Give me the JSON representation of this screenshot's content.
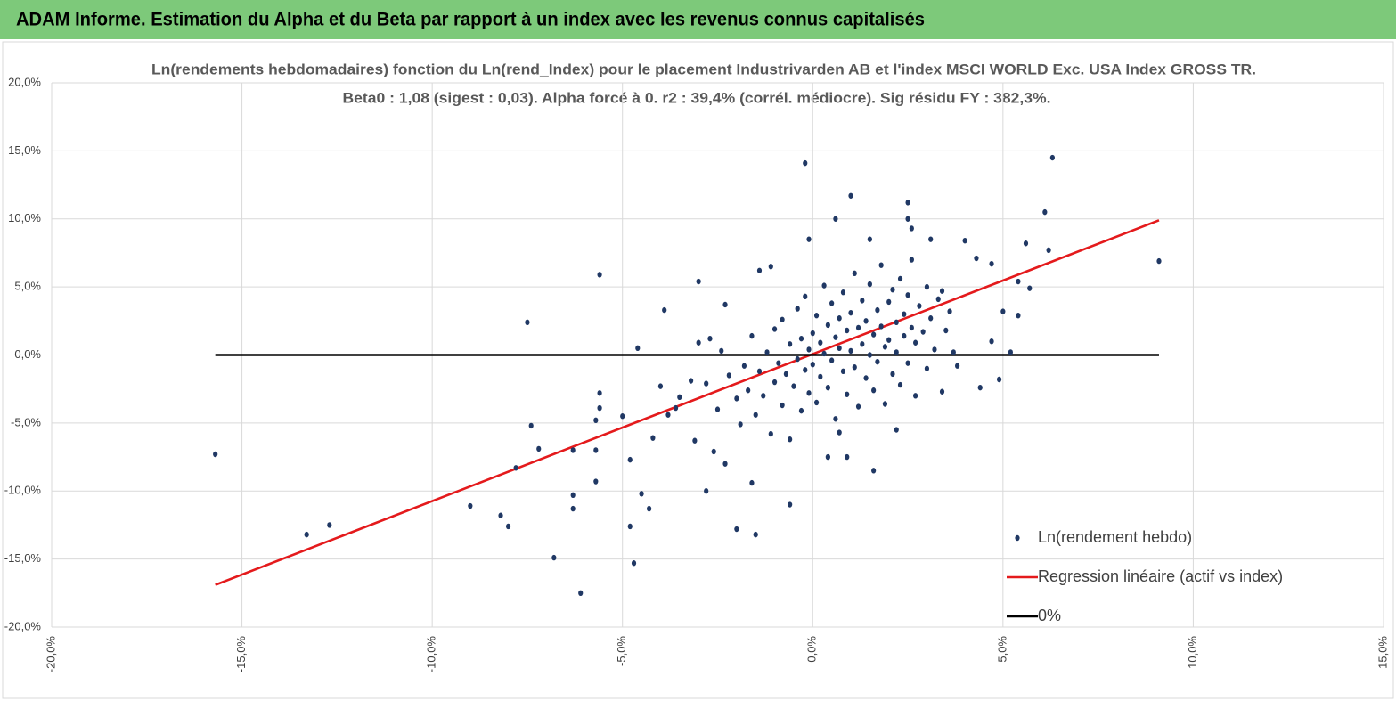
{
  "header": {
    "title": "ADAM Informe. Estimation du Alpha et du Beta par rapport à un index avec les revenus connus capitalisés"
  },
  "chart_data": {
    "type": "scatter",
    "title": "Ln(rendements hebdomadaires) fonction du Ln(rend_Index) pour le placement Industrivarden AB et l'index MSCI WORLD Exc. USA Index GROSS TR.",
    "subtitle": "Beta0 : 1,08  (sigest : 0,03). Alpha forcé à 0. r2 : 39,4% (corrél. médiocre). Sig résidu FY : 382,3%.",
    "xlim": [
      -20,
      15
    ],
    "ylim": [
      -20,
      20
    ],
    "xticks": [
      {
        "value": -20,
        "label": "-20,0%"
      },
      {
        "value": -15,
        "label": "-15,0%"
      },
      {
        "value": -10,
        "label": "-10,0%"
      },
      {
        "value": -5,
        "label": "-5,0%"
      },
      {
        "value": 0,
        "label": "0,0%"
      },
      {
        "value": 5,
        "label": "5,0%"
      },
      {
        "value": 10,
        "label": "10,0%"
      },
      {
        "value": 15,
        "label": "15,0%"
      }
    ],
    "yticks": [
      {
        "value": -20,
        "label": "-20,0%"
      },
      {
        "value": -15,
        "label": "-15,0%"
      },
      {
        "value": -10,
        "label": "-10,0%"
      },
      {
        "value": -5,
        "label": "-5,0%"
      },
      {
        "value": 0,
        "label": "0,0%"
      },
      {
        "value": 5,
        "label": "5,0%"
      },
      {
        "value": 10,
        "label": "10,0%"
      },
      {
        "value": 15,
        "label": "15,0%"
      },
      {
        "value": 20,
        "label": "20,0%"
      }
    ],
    "grid": true,
    "legend": "lower right",
    "series": [
      {
        "name": "Ln(rendement hebdo)",
        "kind": "scatter",
        "color": "#203864",
        "x": [
          -15.7,
          -13.3,
          -12.7,
          -9.0,
          -8.2,
          -8.0,
          -7.8,
          -7.5,
          -7.4,
          -7.2,
          -6.8,
          -6.3,
          -6.3,
          -6.3,
          -6.1,
          -5.7,
          -5.7,
          -5.7,
          -5.6,
          -5.6,
          -5.6,
          -5.0,
          -4.8,
          -4.7,
          -4.6,
          -4.8,
          -4.5,
          -4.3,
          -3.9,
          -3.6,
          -3.0,
          -2.8,
          -2.7,
          -2.3,
          -2.0,
          -1.5,
          -1.6,
          -1.4,
          -1.1,
          -0.6,
          -0.2,
          -0.1,
          0.6,
          1.0,
          1.5,
          1.6,
          2.2,
          2.5,
          2.5,
          2.6,
          3.1,
          4.0,
          4.4,
          4.7,
          4.9,
          5.2,
          5.0,
          5.4,
          5.4,
          5.6,
          5.7,
          6.1,
          6.2,
          6.3,
          9.1,
          4.7,
          4.3,
          3.4,
          3.7,
          0.9,
          0.4,
          0.7,
          -2.8,
          -2.5,
          -2.4,
          -2.2,
          -2.0,
          -1.9,
          -1.8,
          -1.7,
          -1.6,
          -1.5,
          -1.4,
          -1.3,
          -1.2,
          -1.1,
          -1.0,
          -1.0,
          -0.9,
          -0.8,
          -0.8,
          -0.7,
          -0.6,
          -0.6,
          -0.5,
          -0.4,
          -0.4,
          -0.3,
          -0.3,
          -0.2,
          -0.2,
          -0.1,
          -0.1,
          0.0,
          0.0,
          0.1,
          0.1,
          0.2,
          0.2,
          0.3,
          0.3,
          0.4,
          0.4,
          0.5,
          0.5,
          0.6,
          0.6,
          0.7,
          0.7,
          0.8,
          0.8,
          0.9,
          0.9,
          1.0,
          1.0,
          1.1,
          1.1,
          1.2,
          1.2,
          1.3,
          1.3,
          1.4,
          1.4,
          1.5,
          1.5,
          1.6,
          1.6,
          1.7,
          1.7,
          1.8,
          1.8,
          1.9,
          1.9,
          2.0,
          2.0,
          2.1,
          2.1,
          2.2,
          2.2,
          2.3,
          2.3,
          2.4,
          2.4,
          2.5,
          2.5,
          2.6,
          2.6,
          2.7,
          2.7,
          2.8,
          2.9,
          3.0,
          3.0,
          3.1,
          3.2,
          3.3,
          3.4,
          3.5,
          3.6,
          3.8,
          -3.2,
          -3.5,
          -3.8,
          -3.1,
          -2.6,
          -2.3,
          -4.0,
          -4.2,
          -3.0
        ],
        "values": [
          -7.3,
          -13.2,
          -12.5,
          -11.1,
          -11.8,
          -12.6,
          -8.3,
          2.4,
          -5.2,
          -6.9,
          -14.9,
          -11.3,
          -10.3,
          -7.0,
          -17.5,
          -7.0,
          -9.3,
          -4.8,
          5.9,
          -2.8,
          -3.9,
          -4.5,
          -12.6,
          -15.3,
          0.5,
          -7.7,
          -10.2,
          -11.3,
          3.3,
          -3.9,
          5.4,
          -10.0,
          1.2,
          3.7,
          -12.8,
          -13.2,
          -9.4,
          6.2,
          6.5,
          -11.0,
          14.1,
          8.5,
          10.0,
          11.7,
          8.5,
          -8.5,
          -5.5,
          11.2,
          10.0,
          9.3,
          8.5,
          8.4,
          -2.4,
          1.0,
          -1.8,
          0.2,
          3.2,
          5.4,
          2.9,
          8.2,
          4.9,
          10.5,
          7.7,
          14.5,
          6.9,
          6.7,
          7.1,
          4.7,
          0.2,
          -7.5,
          -7.5,
          -5.7,
          -2.1,
          -4.0,
          0.3,
          -1.5,
          -3.2,
          -5.1,
          -0.8,
          -2.6,
          1.4,
          -4.4,
          -1.2,
          -3.0,
          0.2,
          -5.8,
          -2.0,
          1.9,
          -0.6,
          -3.7,
          2.6,
          -1.4,
          0.8,
          -6.2,
          -2.3,
          3.4,
          -0.3,
          -4.1,
          1.2,
          -1.1,
          4.3,
          0.4,
          -2.8,
          1.6,
          -0.7,
          2.9,
          -3.5,
          0.9,
          -1.6,
          5.1,
          0.1,
          -2.4,
          2.2,
          -0.4,
          3.8,
          1.3,
          -4.7,
          0.5,
          2.7,
          -1.2,
          4.6,
          1.8,
          -2.9,
          0.3,
          3.1,
          -0.9,
          6.0,
          2.0,
          -3.8,
          0.8,
          4.0,
          -1.7,
          2.5,
          0.0,
          5.2,
          1.5,
          -2.6,
          3.3,
          -0.5,
          2.1,
          6.6,
          0.6,
          -3.6,
          3.9,
          1.1,
          -1.4,
          4.8,
          2.4,
          0.2,
          5.6,
          -2.2,
          3.0,
          1.4,
          -0.6,
          4.4,
          2.0,
          7.0,
          0.9,
          -3.0,
          3.6,
          1.7,
          5.0,
          -1.0,
          2.7,
          0.4,
          4.1,
          -2.7,
          1.8,
          3.2,
          -0.8,
          -1.9,
          -3.1,
          -4.4,
          -6.3,
          -7.1,
          -8.0,
          -2.3,
          -6.1,
          0.9
        ]
      },
      {
        "name": "Regression linéaire (actif vs index)",
        "kind": "line",
        "color": "#e41a1c",
        "x": [
          -15.7,
          9.1
        ],
        "values": [
          -16.9,
          9.9
        ]
      },
      {
        "name": "0%",
        "kind": "line",
        "color": "#000000",
        "x": [
          -15.7,
          9.1
        ],
        "values": [
          0,
          0
        ]
      }
    ]
  }
}
